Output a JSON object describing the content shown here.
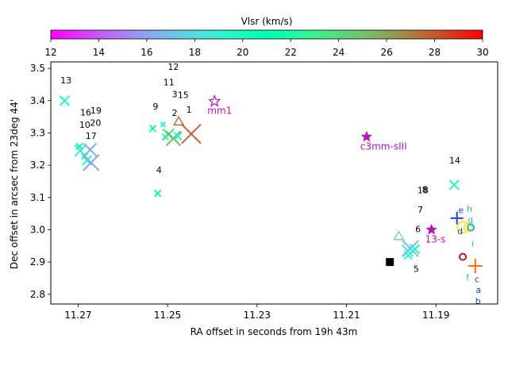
{
  "chart_data": {
    "type": "scatter",
    "xlabel": "RA offset in seconds from 19h 43m",
    "ylabel": "Dec offset in arcsec from 23deg 44'",
    "xlim": [
      11.2761,
      11.1762
    ],
    "ylim": [
      2.77,
      3.52
    ],
    "xticks": [
      11.27,
      11.25,
      11.23,
      11.21,
      11.19
    ],
    "xtick_labels": [
      "11.27",
      "11.25",
      "11.23",
      "11.21",
      "11.19"
    ],
    "yticks": [
      2.8,
      2.9,
      3.0,
      3.1,
      3.2,
      3.3,
      3.4,
      3.5
    ],
    "ytick_labels": [
      "2.8",
      "2.9",
      "3.0",
      "3.1",
      "3.2",
      "3.3",
      "3.4",
      "3.5"
    ],
    "colorbar": {
      "label": "Vlsr (km/s)",
      "range": [
        12,
        30
      ],
      "ticks": [
        12,
        14,
        16,
        18,
        20,
        22,
        24,
        26,
        28,
        30
      ],
      "tick_labels": [
        "12",
        "14",
        "16",
        "18",
        "20",
        "22",
        "24",
        "26",
        "28",
        "30"
      ],
      "colormap": "rainbow"
    },
    "masers": [
      {
        "x": 11.273,
        "y": 3.4,
        "v": 19.8,
        "size": 6
      },
      {
        "x": 11.2697,
        "y": 3.258,
        "v": 21.0,
        "size": 4
      },
      {
        "x": 11.2695,
        "y": 3.245,
        "v": 18.9,
        "size": 7
      },
      {
        "x": 11.2685,
        "y": 3.228,
        "v": 19.5,
        "size": 4
      },
      {
        "x": 11.268,
        "y": 3.215,
        "v": 19.9,
        "size": 6
      },
      {
        "x": 11.2673,
        "y": 3.248,
        "v": 16.3,
        "size": 8
      },
      {
        "x": 11.2671,
        "y": 3.208,
        "v": 16.0,
        "size": 10
      },
      {
        "x": 11.2533,
        "y": 3.314,
        "v": 21.4,
        "size": 4
      },
      {
        "x": 11.2522,
        "y": 3.113,
        "v": 21.2,
        "size": 4
      },
      {
        "x": 11.251,
        "y": 3.326,
        "v": 19.5,
        "size": 3
      },
      {
        "x": 11.2505,
        "y": 3.288,
        "v": 20.0,
        "size": 4
      },
      {
        "x": 11.2498,
        "y": 3.295,
        "v": 23.7,
        "size": 7
      },
      {
        "x": 11.2487,
        "y": 3.283,
        "v": 25.5,
        "size": 9
      },
      {
        "x": 11.2477,
        "y": 3.29,
        "v": 20.0,
        "size": 5
      },
      {
        "x": 11.2447,
        "y": 3.297,
        "v": 27.8,
        "size": 12
      },
      {
        "x": 11.1963,
        "y": 2.935,
        "v": 19.5,
        "size": 7
      },
      {
        "x": 11.1962,
        "y": 2.921,
        "v": 19.9,
        "size": 5
      },
      {
        "x": 11.1957,
        "y": 2.942,
        "v": 16.5,
        "size": 10
      },
      {
        "x": 11.1947,
        "y": 2.94,
        "v": 19.8,
        "size": 6
      },
      {
        "x": 11.1859,
        "y": 3.139,
        "v": 20.0,
        "size": 6
      }
    ],
    "triangles": [
      {
        "x": 11.2475,
        "y": 3.335,
        "v": 28.0
      },
      {
        "x": 11.1983,
        "y": 2.98,
        "v": 17.0
      }
    ],
    "plus_markers": [
      {
        "x": 11.1853,
        "y": 3.036,
        "color": "#1f3fe0",
        "size": 8
      },
      {
        "x": 11.1812,
        "y": 2.888,
        "color": "#ff6a10",
        "size": 9
      }
    ],
    "circles": [
      {
        "x": 11.184,
        "y": 3.008,
        "color": "#ffe820",
        "r": 7
      },
      {
        "x": 11.1828,
        "y": 3.007,
        "color": "#ffe820",
        "r": 5
      },
      {
        "x": 11.1822,
        "y": 3.007,
        "color": "#20b8d8",
        "r": 4
      },
      {
        "x": 11.184,
        "y": 2.916,
        "color": "#cc1010",
        "r": 4
      }
    ],
    "square": {
      "x": 11.2003,
      "y": 2.9
    },
    "filled_stars": [
      {
        "x": 11.2055,
        "y": 3.288,
        "label": "c3mm-sIII"
      },
      {
        "x": 11.191,
        "y": 3.0,
        "label": "13-s"
      }
    ],
    "open_stars": [
      {
        "x": 11.2395,
        "y": 3.398,
        "label": "mm1"
      }
    ],
    "maser_labels": [
      {
        "text": "13",
        "x": 11.2727,
        "y": 3.453
      },
      {
        "text": "12",
        "x": 11.2487,
        "y": 3.495
      },
      {
        "text": "11",
        "x": 11.2497,
        "y": 3.448
      },
      {
        "text": "3",
        "x": 11.2484,
        "y": 3.41
      },
      {
        "text": "15",
        "x": 11.2465,
        "y": 3.408
      },
      {
        "text": "9",
        "x": 11.2527,
        "y": 3.373
      },
      {
        "text": "2",
        "x": 11.2484,
        "y": 3.353
      },
      {
        "text": "1",
        "x": 11.2452,
        "y": 3.363
      },
      {
        "text": "16",
        "x": 11.2683,
        "y": 3.354
      },
      {
        "text": "19",
        "x": 11.266,
        "y": 3.36
      },
      {
        "text": "10",
        "x": 11.2685,
        "y": 3.316
      },
      {
        "text": "20",
        "x": 11.2661,
        "y": 3.322
      },
      {
        "text": "17",
        "x": 11.2671,
        "y": 3.281
      },
      {
        "text": "4",
        "x": 11.2519,
        "y": 3.176
      },
      {
        "text": "18",
        "x": 11.1929,
        "y": 3.113
      },
      {
        "text": "8",
        "x": 11.1925,
        "y": 3.115
      },
      {
        "text": "14",
        "x": 11.1858,
        "y": 3.205
      },
      {
        "text": "7",
        "x": 11.1935,
        "y": 3.053
      },
      {
        "text": "6",
        "x": 11.194,
        "y": 2.992
      },
      {
        "text": "5",
        "x": 11.1944,
        "y": 2.87
      }
    ],
    "letter_labels": [
      {
        "text": "e",
        "x": 11.1844,
        "y": 3.052,
        "color": "#1f3fe0"
      },
      {
        "text": "h",
        "x": 11.1825,
        "y": 3.055,
        "color": "#20b8d8"
      },
      {
        "text": "g",
        "x": 11.1823,
        "y": 3.022,
        "color": "#20b8d8"
      },
      {
        "text": "d",
        "x": 11.1846,
        "y": 2.987,
        "color": "#1f3fe0"
      },
      {
        "text": "i",
        "x": 11.1818,
        "y": 2.948,
        "color": "#20b8d8"
      },
      {
        "text": "f",
        "x": 11.1829,
        "y": 2.842,
        "color": "#20b8d8"
      },
      {
        "text": "c",
        "x": 11.1808,
        "y": 2.838,
        "color": "#1f3fe0"
      },
      {
        "text": "a",
        "x": 11.1805,
        "y": 2.804,
        "color": "#1f3fe0"
      },
      {
        "text": "b",
        "x": 11.1806,
        "y": 2.77,
        "color": "#1f3fe0"
      }
    ],
    "source_label_color": "#bb10bb"
  }
}
